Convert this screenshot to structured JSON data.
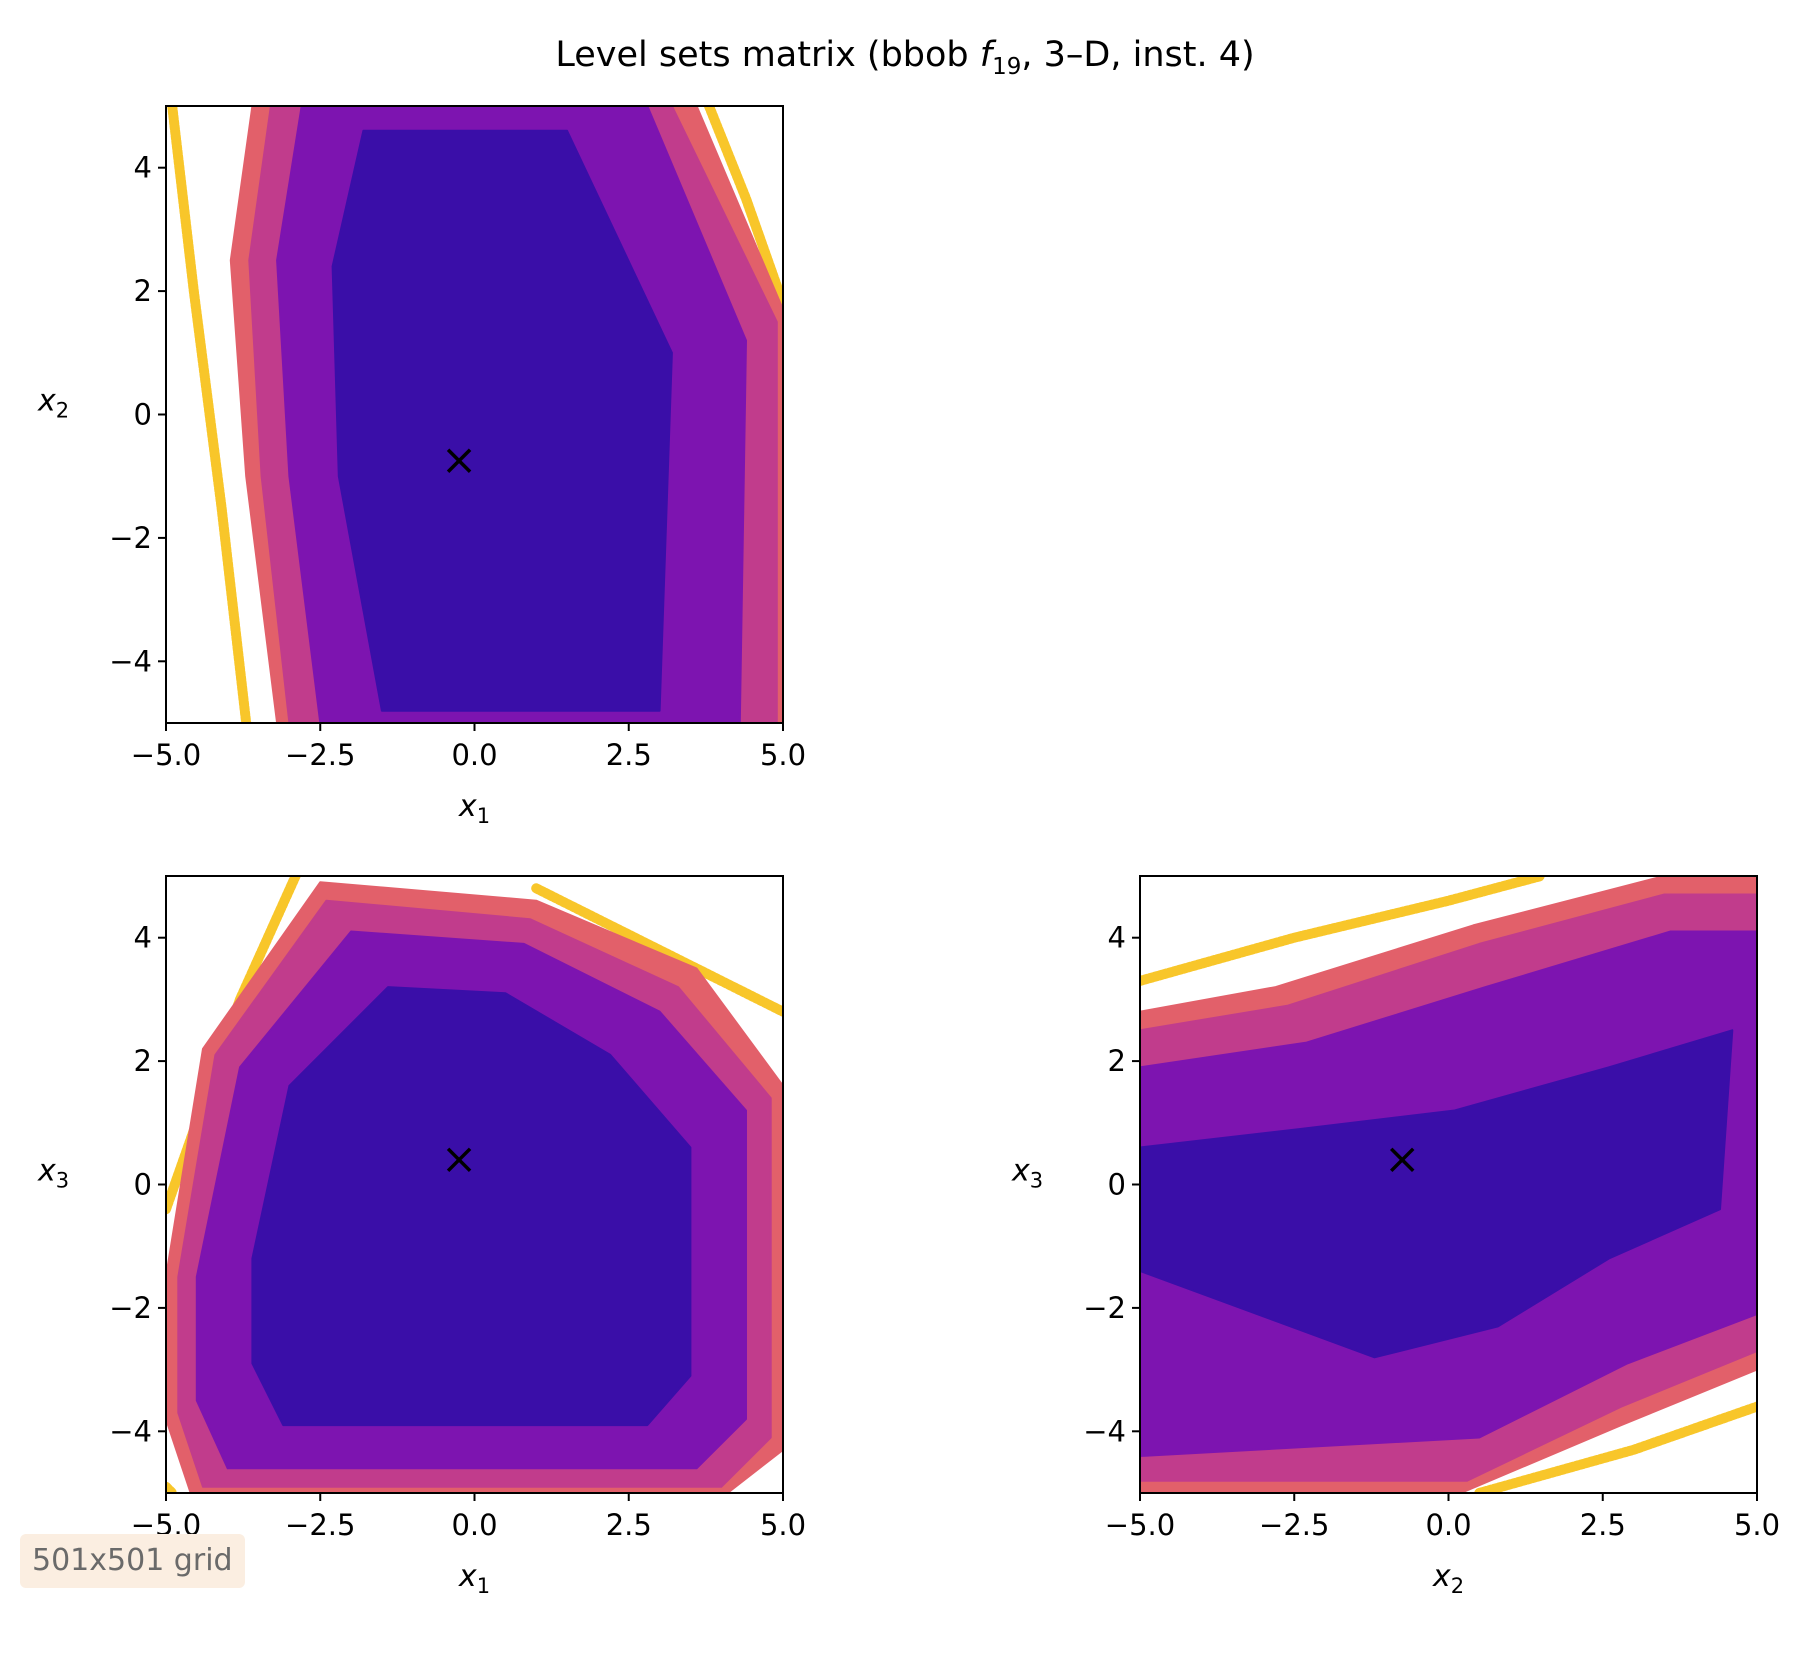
{
  "chart_data": {
    "type": "contour",
    "title_main": "Level sets matrix (bbob ",
    "title_func": "f",
    "title_func_sub": "19",
    "title_rest": ", 3–D, inst. 4)",
    "optimum": {
      "x1": -0.25,
      "x2": -0.75,
      "x3": 0.4
    },
    "colors": {
      "core": "#3a0ea8",
      "mid": "#7d14b0",
      "outer": "#c13c8c",
      "ring": "#e2606a",
      "gold": "#f8c62a",
      "marker": "#000000"
    },
    "panels": [
      {
        "id": "x1-x2",
        "xlabel": "x",
        "xlabel_sub": "1",
        "ylabel": "x",
        "ylabel_sub": "2",
        "xlim": [
          -5,
          5
        ],
        "ylim": [
          -5,
          5
        ],
        "xticks": [
          -5.0,
          -2.5,
          0.0,
          2.5,
          5.0
        ],
        "xtick_labels": [
          "−5.0",
          "−2.5",
          "0.0",
          "2.5",
          "5.0"
        ],
        "yticks": [
          -4,
          -2,
          0,
          2,
          4
        ],
        "ytick_labels": [
          "−4",
          "−2",
          "0",
          "2",
          "4"
        ],
        "marker": [
          -0.25,
          -0.75
        ]
      },
      {
        "id": "x1-x3",
        "xlabel": "x",
        "xlabel_sub": "1",
        "ylabel": "x",
        "ylabel_sub": "3",
        "xlim": [
          -5,
          5
        ],
        "ylim": [
          -5,
          5
        ],
        "xticks": [
          -5.0,
          -2.5,
          0.0,
          2.5,
          5.0
        ],
        "xtick_labels": [
          "−5.0",
          "−2.5",
          "0.0",
          "2.5",
          "5.0"
        ],
        "yticks": [
          -4,
          -2,
          0,
          2,
          4
        ],
        "ytick_labels": [
          "−4",
          "−2",
          "0",
          "2",
          "4"
        ],
        "marker": [
          -0.25,
          0.4
        ]
      },
      {
        "id": "x2-x3",
        "xlabel": "x",
        "xlabel_sub": "2",
        "ylabel": "x",
        "ylabel_sub": "3",
        "xlim": [
          -5,
          5
        ],
        "ylim": [
          -5,
          5
        ],
        "xticks": [
          -5.0,
          -2.5,
          0.0,
          2.5,
          5.0
        ],
        "xtick_labels": [
          "−5.0",
          "−2.5",
          "0.0",
          "2.5",
          "5.0"
        ],
        "yticks": [
          -4,
          -2,
          0,
          2,
          4
        ],
        "ytick_labels": [
          "−4",
          "−2",
          "0",
          "2",
          "4"
        ],
        "marker": [
          -0.75,
          0.4
        ]
      }
    ],
    "footnote": "501x501 grid"
  }
}
